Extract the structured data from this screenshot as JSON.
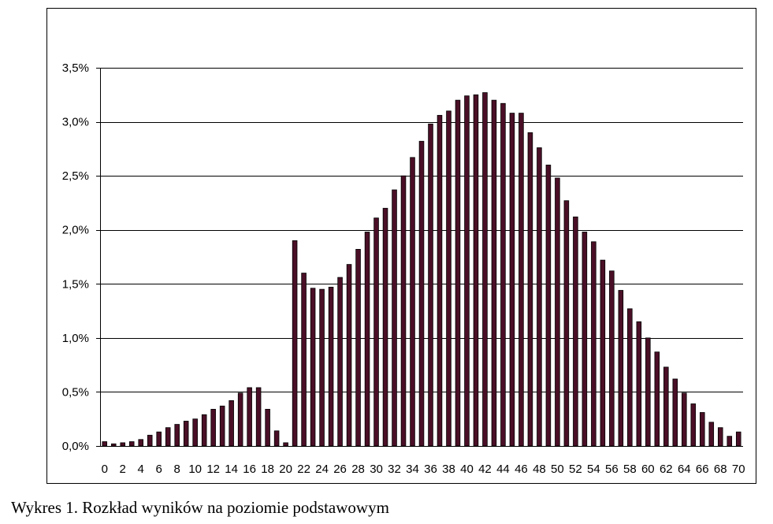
{
  "caption": "Wykres 1. Rozkład wyników na poziomie podstawowym",
  "colors": {
    "bar_fill": "#4a0f26",
    "bar_stroke": "#000000",
    "grid": "#000000",
    "background": "#ffffff"
  },
  "chart_data": {
    "type": "bar",
    "title": "",
    "xlabel": "",
    "ylabel": "",
    "ylim": [
      0,
      3.5
    ],
    "y_tick_values": [
      0,
      0.5,
      1.0,
      1.5,
      2.0,
      2.5,
      3.0,
      3.5
    ],
    "y_tick_labels": [
      "0,0%",
      "0,5%",
      "1,0%",
      "1,5%",
      "2,0%",
      "2,5%",
      "3,0%",
      "3,5%"
    ],
    "x_tick_labels": [
      "0",
      "2",
      "4",
      "6",
      "8",
      "10",
      "12",
      "14",
      "16",
      "18",
      "20",
      "22",
      "24",
      "26",
      "28",
      "30",
      "32",
      "34",
      "36",
      "38",
      "40",
      "42",
      "44",
      "46",
      "48",
      "50",
      "52",
      "54",
      "56",
      "58",
      "60",
      "62",
      "64",
      "66",
      "68",
      "70"
    ],
    "grid": true,
    "legend": "none",
    "categories": [
      0,
      1,
      2,
      3,
      4,
      5,
      6,
      7,
      8,
      9,
      10,
      11,
      12,
      13,
      14,
      15,
      16,
      17,
      18,
      19,
      20,
      21,
      22,
      23,
      24,
      25,
      26,
      27,
      28,
      29,
      30,
      31,
      32,
      33,
      34,
      35,
      36,
      37,
      38,
      39,
      40,
      41,
      42,
      43,
      44,
      45,
      46,
      47,
      48,
      49,
      50,
      51,
      52,
      53,
      54,
      55,
      56,
      57,
      58,
      59,
      60,
      61,
      62,
      63,
      64,
      65,
      66,
      67,
      68,
      69,
      70
    ],
    "values": [
      0.04,
      0.02,
      0.03,
      0.04,
      0.06,
      0.1,
      0.13,
      0.17,
      0.2,
      0.23,
      0.25,
      0.29,
      0.34,
      0.37,
      0.42,
      0.49,
      0.54,
      0.54,
      0.34,
      0.14,
      0.03,
      1.9,
      1.6,
      1.46,
      1.45,
      1.47,
      1.56,
      1.68,
      1.82,
      1.98,
      2.11,
      2.2,
      2.37,
      2.5,
      2.67,
      2.82,
      2.98,
      3.06,
      3.1,
      3.2,
      3.24,
      3.25,
      3.27,
      3.2,
      3.17,
      3.08,
      3.08,
      2.9,
      2.76,
      2.6,
      2.48,
      2.27,
      2.12,
      1.98,
      1.89,
      1.72,
      1.62,
      1.44,
      1.27,
      1.15,
      1.0,
      0.87,
      0.73,
      0.62,
      0.49,
      0.39,
      0.31,
      0.22,
      0.17,
      0.09,
      0.13
    ]
  }
}
